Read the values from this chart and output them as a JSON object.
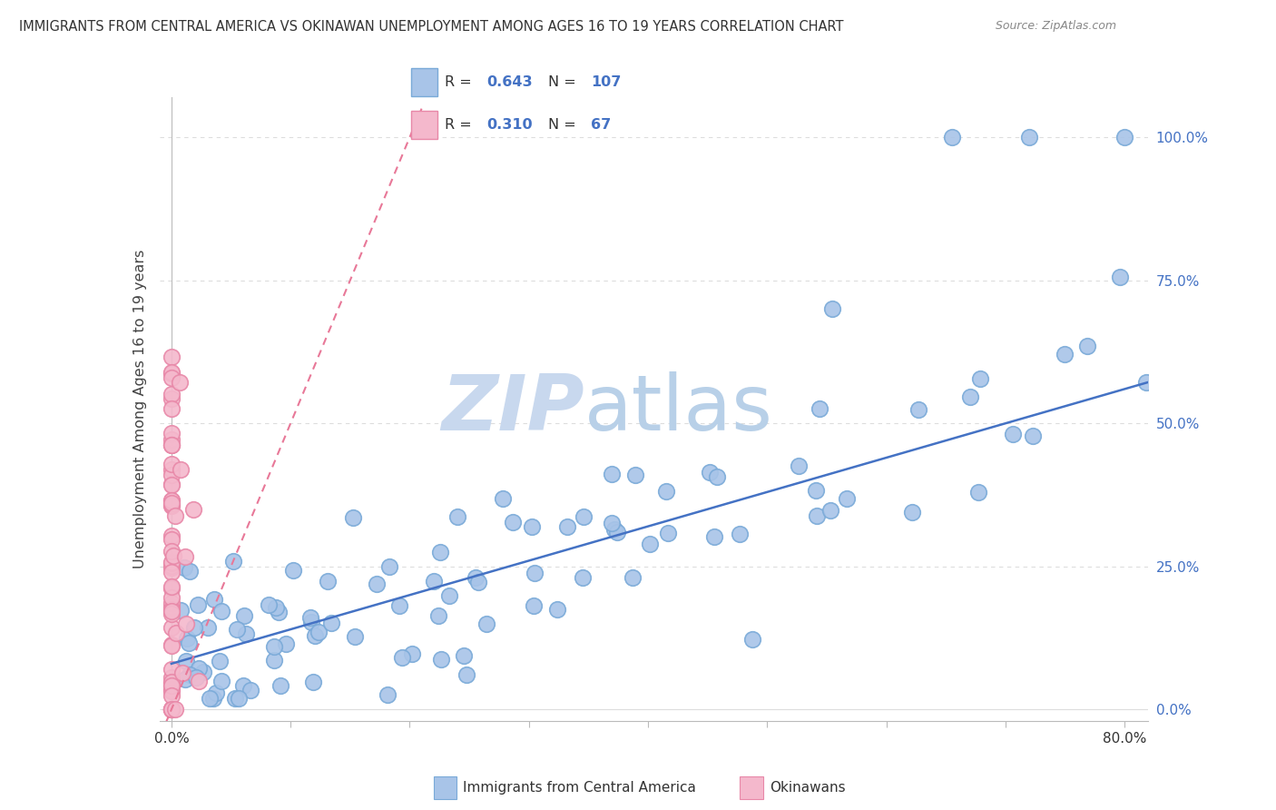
{
  "title": "IMMIGRANTS FROM CENTRAL AMERICA VS OKINAWAN UNEMPLOYMENT AMONG AGES 16 TO 19 YEARS CORRELATION CHART",
  "source": "Source: ZipAtlas.com",
  "ylabel": "Unemployment Among Ages 16 to 19 years",
  "xlabel_bottom": "Immigrants from Central America",
  "xlabel_bottom2": "Okinawans",
  "xlim": [
    -0.01,
    0.82
  ],
  "ylim": [
    -0.02,
    1.07
  ],
  "blue_R": 0.643,
  "blue_N": 107,
  "pink_R": 0.31,
  "pink_N": 67,
  "blue_color": "#A8C4E8",
  "pink_color": "#F4B8CC",
  "blue_edge_color": "#7AAAD8",
  "pink_edge_color": "#E888A8",
  "blue_line_color": "#4472C4",
  "pink_line_color": "#E87898",
  "watermark_zip": "ZIP",
  "watermark_atlas": "atlas",
  "watermark_color": "#C8D8EE",
  "background_color": "#FFFFFF",
  "grid_color": "#DDDDDD",
  "title_color": "#333333",
  "legend_color": "#4472C4",
  "right_axis_color": "#4472C4"
}
